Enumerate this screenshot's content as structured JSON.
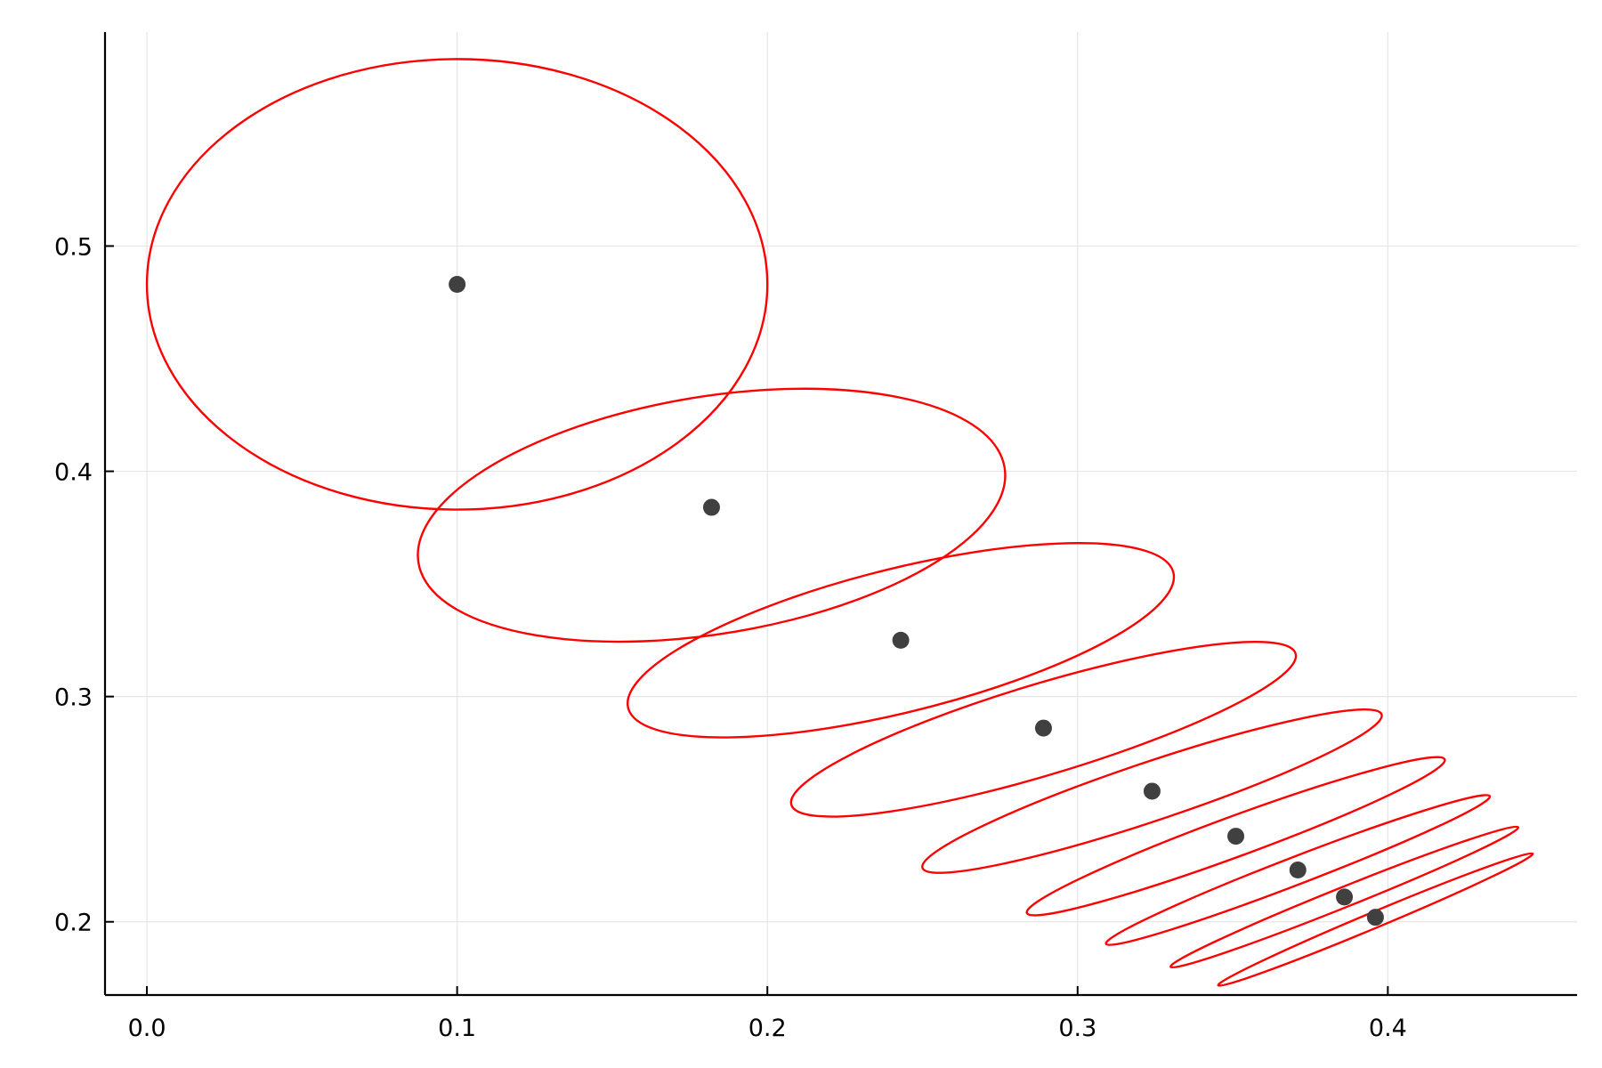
{
  "chart_data": {
    "type": "scatter",
    "title": "",
    "xlabel": "",
    "ylabel": "",
    "xlim": [
      -0.0135,
      0.461
    ],
    "ylim": [
      0.1675,
      0.595
    ],
    "xticks": [
      0.0,
      0.1,
      0.2,
      0.3,
      0.4
    ],
    "yticks": [
      0.2,
      0.3,
      0.4,
      0.5
    ],
    "xtick_labels": [
      "0.0",
      "0.1",
      "0.2",
      "0.3",
      "0.4"
    ],
    "ytick_labels": [
      "0.2",
      "0.3",
      "0.4",
      "0.5"
    ],
    "grid": true,
    "legend": "none",
    "point_color": "#404040",
    "ellipse_color": "#ff0000",
    "points": [
      {
        "x": 0.1,
        "y": 0.483
      },
      {
        "x": 0.182,
        "y": 0.384
      },
      {
        "x": 0.243,
        "y": 0.325
      },
      {
        "x": 0.289,
        "y": 0.286
      },
      {
        "x": 0.324,
        "y": 0.258
      },
      {
        "x": 0.351,
        "y": 0.238
      },
      {
        "x": 0.371,
        "y": 0.223
      },
      {
        "x": 0.386,
        "y": 0.211
      },
      {
        "x": 0.396,
        "y": 0.202
      }
    ],
    "ellipses": [
      {
        "cx": 0.1,
        "cy": 0.483,
        "rx": 0.1,
        "ry": 0.1,
        "angle_deg": 0
      },
      {
        "cx": 0.182,
        "cy": 0.3805,
        "rx": 0.097,
        "ry": 0.052,
        "angle_deg": 15
      },
      {
        "cx": 0.243,
        "cy": 0.325,
        "rx": 0.093,
        "ry": 0.031,
        "angle_deg": 20
      },
      {
        "cx": 0.289,
        "cy": 0.2855,
        "rx": 0.088,
        "ry": 0.0195,
        "angle_deg": 23
      },
      {
        "cx": 0.324,
        "cy": 0.258,
        "rx": 0.0815,
        "ry": 0.0125,
        "angle_deg": 25
      },
      {
        "cx": 0.351,
        "cy": 0.238,
        "rx": 0.0755,
        "ry": 0.0085,
        "angle_deg": 27
      },
      {
        "cx": 0.371,
        "cy": 0.223,
        "rx": 0.07,
        "ry": 0.0058,
        "angle_deg": 28
      },
      {
        "cx": 0.386,
        "cy": 0.211,
        "rx": 0.064,
        "ry": 0.0042,
        "angle_deg": 29
      },
      {
        "cx": 0.396,
        "cy": 0.201,
        "rx": 0.0585,
        "ry": 0.0033,
        "angle_deg": 30
      }
    ]
  }
}
